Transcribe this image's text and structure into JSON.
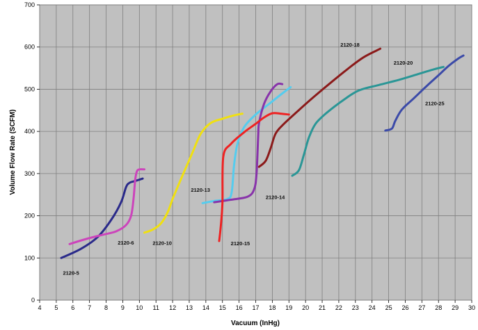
{
  "chart_data": {
    "type": "line",
    "title": "",
    "xlabel": "Vacuum (InHg)",
    "ylabel": "Volume Flow Rate (SCFM)",
    "xlim": [
      4,
      30
    ],
    "ylim": [
      0,
      700
    ],
    "x_ticks": [
      "4",
      "5",
      "6",
      "7",
      "8",
      "9",
      "10",
      "11",
      "12",
      "13",
      "14",
      "15",
      "16",
      "17",
      "18",
      "19",
      "20",
      "21",
      "22",
      "23",
      "24",
      "25",
      "26",
      "27",
      "28",
      "29",
      "30"
    ],
    "y_ticks": [
      "0",
      "100",
      "200",
      "300",
      "400",
      "500",
      "600",
      "700"
    ],
    "grid": true,
    "background": "#c0c0c0",
    "series": [
      {
        "name": "2120-5",
        "color": "#2a2a8a",
        "x": [
          5.3,
          6.5,
          7.5,
          8.3,
          8.9,
          9.2,
          9.4,
          9.7,
          10.2
        ],
        "y": [
          100,
          122,
          150,
          190,
          232,
          268,
          278,
          282,
          288
        ]
      },
      {
        "name": "2120-6",
        "color": "#cc44bb",
        "x": [
          5.8,
          6.8,
          7.8,
          8.6,
          9.2,
          9.5,
          9.65,
          9.75,
          9.85,
          10.0,
          10.3
        ],
        "y": [
          133,
          145,
          155,
          163,
          178,
          200,
          240,
          285,
          305,
          310,
          310
        ]
      },
      {
        "name": "2120-10",
        "color": "#f0e010",
        "x": [
          10.3,
          10.8,
          11.3,
          11.7,
          12.0,
          12.3,
          12.7,
          13.2,
          13.7,
          14.3,
          15.0,
          15.7,
          16.2
        ],
        "y": [
          160,
          167,
          182,
          208,
          240,
          268,
          305,
          350,
          395,
          420,
          430,
          438,
          442
        ]
      },
      {
        "name": "2120-13",
        "color": "#55ccee",
        "x": [
          13.8,
          14.5,
          15.3,
          15.55,
          15.7,
          15.9,
          16.3,
          17.0,
          17.8,
          18.6,
          19.1
        ],
        "y": [
          230,
          235,
          240,
          255,
          320,
          370,
          410,
          440,
          465,
          490,
          505
        ]
      },
      {
        "name": "2120-14",
        "color": "#8833aa",
        "x": [
          14.5,
          15.5,
          16.5,
          16.9,
          17.05,
          17.15,
          17.2,
          17.5,
          17.9,
          18.3,
          18.6
        ],
        "y": [
          232,
          238,
          245,
          262,
          300,
          390,
          420,
          465,
          495,
          512,
          512
        ]
      },
      {
        "name": "2120-15",
        "color": "#ee2222",
        "x": [
          14.8,
          14.9,
          15.0,
          15.05,
          15.5,
          16.3,
          17.0,
          17.5,
          18.0,
          18.5,
          19.0
        ],
        "y": [
          140,
          175,
          230,
          340,
          370,
          398,
          418,
          433,
          443,
          442,
          440
        ]
      },
      {
        "name": "2120-18",
        "color": "#8b1a1a",
        "x": [
          17.2,
          17.6,
          17.9,
          18.2,
          18.7,
          19.5,
          20.5,
          21.5,
          22.5,
          23.5,
          24.5
        ],
        "y": [
          316,
          330,
          360,
          395,
          418,
          447,
          482,
          515,
          547,
          576,
          596
        ]
      },
      {
        "name": "2120-20",
        "color": "#2a9696",
        "x": [
          19.2,
          19.6,
          19.9,
          20.2,
          20.6,
          21.3,
          22.3,
          23.2,
          24.4,
          25.6,
          26.7,
          27.7,
          28.3
        ],
        "y": [
          295,
          308,
          345,
          385,
          418,
          445,
          475,
          497,
          510,
          522,
          535,
          547,
          553
        ]
      },
      {
        "name": "2120-25",
        "color": "#3b4aa8",
        "x": [
          24.8,
          25.2,
          25.4,
          25.8,
          26.5,
          27.3,
          28.0,
          28.6,
          29.2,
          29.5
        ],
        "y": [
          402,
          407,
          425,
          452,
          478,
          508,
          533,
          555,
          573,
          580
        ]
      }
    ],
    "labels": [
      {
        "text": "2120-5",
        "x": 5.4,
        "y": 60
      },
      {
        "text": "2120-6",
        "x": 8.7,
        "y": 132
      },
      {
        "text": "2120-10",
        "x": 10.8,
        "y": 131
      },
      {
        "text": "2120-13",
        "x": 13.1,
        "y": 257
      },
      {
        "text": "2120-14",
        "x": 17.6,
        "y": 240
      },
      {
        "text": "2120-15",
        "x": 15.5,
        "y": 130
      },
      {
        "text": "2120-18",
        "x": 22.1,
        "y": 601
      },
      {
        "text": "2120-20",
        "x": 25.3,
        "y": 558
      },
      {
        "text": "2120-25",
        "x": 27.2,
        "y": 462
      }
    ]
  }
}
